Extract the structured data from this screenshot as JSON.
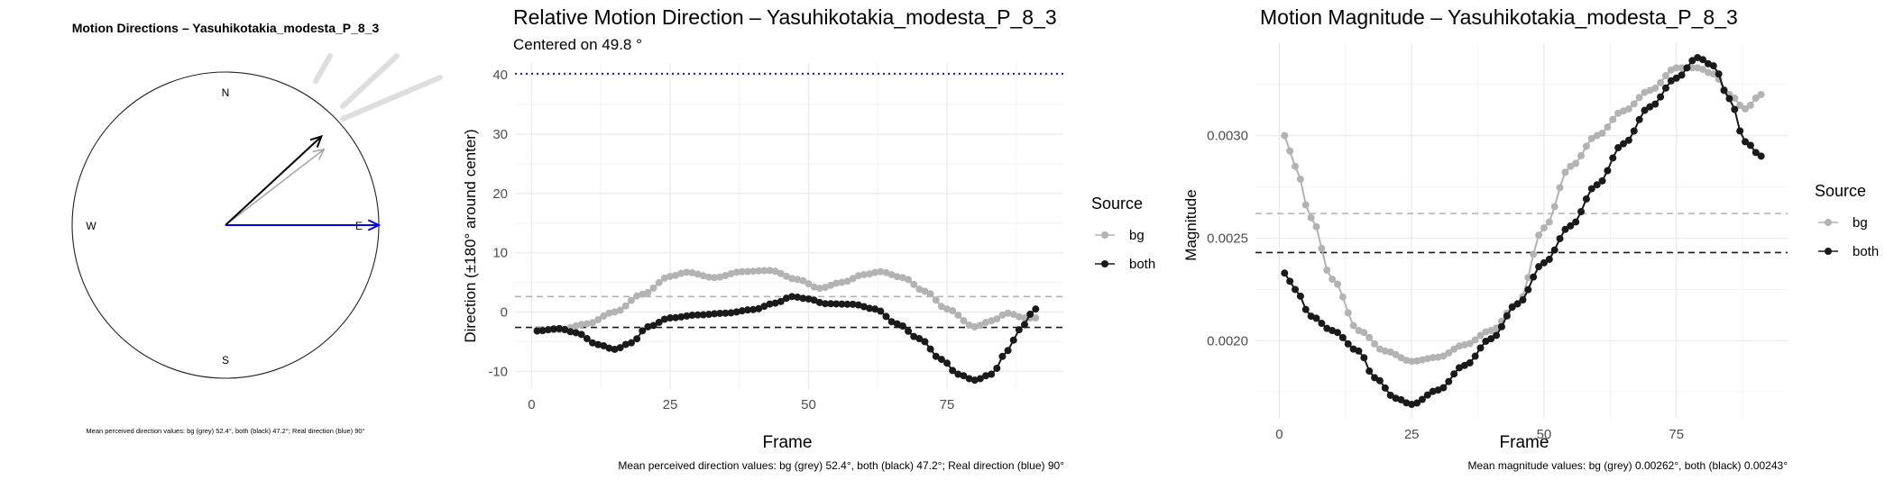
{
  "compass": {
    "title": "Motion Directions – Yasuhikotakia_modesta_P_8_3",
    "labels": {
      "n": "N",
      "e": "E",
      "s": "S",
      "w": "W"
    },
    "caption": "Mean perceived direction values: bg (grey) 52.4°, both (black) 47.2°; Real direction (blue) 90°",
    "arrows": [
      {
        "name": "bg",
        "angle_deg": 52.4,
        "color": "#a8a8a8"
      },
      {
        "name": "both",
        "angle_deg": 47.2,
        "color": "#000000"
      },
      {
        "name": "real",
        "angle_deg": 90,
        "color": "#0000ee"
      }
    ]
  },
  "legend": {
    "title": "Source",
    "items": [
      {
        "label": "bg",
        "color": "#b3b3b3"
      },
      {
        "label": "both",
        "color": "#1a1a1a"
      }
    ]
  },
  "colors": {
    "bg": "#b3b3b3",
    "both": "#1a1a1a",
    "real": "#1a1aa8",
    "grid": "#ebebeb"
  },
  "chart_data": [
    {
      "type": "line",
      "title": "Relative Motion Direction – Yasuhikotakia_modesta_P_8_3",
      "subtitle": "Centered on  49.8 °",
      "xlabel": "Frame",
      "ylabel": "Direction (±180° around center)",
      "xlim": [
        -3,
        96
      ],
      "ylim": [
        -13,
        42
      ],
      "xticks": [
        0,
        25,
        50,
        75
      ],
      "yticks": [
        -10,
        0,
        10,
        20,
        30,
        40
      ],
      "caption": "Mean perceived direction values: bg (grey) 52.4°, both (black) 47.2°; Real direction (blue) 90°",
      "hlines": [
        {
          "series": "real",
          "value": 40.2,
          "style": "dotted"
        },
        {
          "series": "bg",
          "value": 2.6,
          "style": "dashed"
        },
        {
          "series": "both",
          "value": -2.6,
          "style": "dashed"
        }
      ],
      "series": [
        {
          "name": "bg",
          "points": [
            [
              1,
              -3
            ],
            [
              5,
              -3
            ],
            [
              10,
              -2
            ],
            [
              15,
              0
            ],
            [
              20,
              3
            ],
            [
              25,
              6
            ],
            [
              28,
              6.7
            ],
            [
              33,
              5.8
            ],
            [
              38,
              6.8
            ],
            [
              43,
              7
            ],
            [
              48,
              5.5
            ],
            [
              52,
              4
            ],
            [
              56,
              5
            ],
            [
              60,
              6.3
            ],
            [
              63,
              6.8
            ],
            [
              67,
              5.8
            ],
            [
              71,
              3.5
            ],
            [
              75,
              0.5
            ],
            [
              80,
              -2.5
            ],
            [
              83,
              -1.5
            ],
            [
              86,
              -0.2
            ],
            [
              89,
              -1
            ],
            [
              91,
              -1
            ]
          ]
        },
        {
          "name": "both",
          "points": [
            [
              1,
              -3.2
            ],
            [
              5,
              -2.8
            ],
            [
              8,
              -3.5
            ],
            [
              12,
              -5.5
            ],
            [
              15,
              -6.3
            ],
            [
              18,
              -5.2
            ],
            [
              21,
              -2.5
            ],
            [
              25,
              -1
            ],
            [
              30,
              -0.5
            ],
            [
              35,
              -0.2
            ],
            [
              40,
              0.4
            ],
            [
              44,
              1.5
            ],
            [
              47,
              2.6
            ],
            [
              50,
              2.2
            ],
            [
              53,
              1.4
            ],
            [
              58,
              1.3
            ],
            [
              62,
              0.5
            ],
            [
              66,
              -2
            ],
            [
              70,
              -4.5
            ],
            [
              74,
              -8
            ],
            [
              77,
              -10.5
            ],
            [
              80,
              -11.5
            ],
            [
              83,
              -10.5
            ],
            [
              86,
              -6.5
            ],
            [
              88,
              -3
            ],
            [
              91,
              0.5
            ]
          ]
        }
      ]
    },
    {
      "type": "line",
      "title": "Motion Magnitude – Yasuhikotakia_modesta_P_8_3",
      "xlabel": "Frame",
      "ylabel": "Magnitude",
      "xlim": [
        -4.5,
        96
      ],
      "ylim": [
        0.00162,
        0.00345
      ],
      "xticks": [
        0,
        25,
        50,
        75
      ],
      "yticks": [
        0.002,
        0.0025,
        0.003
      ],
      "ytick_labels": [
        "0.0020",
        "0.0025",
        "0.0030"
      ],
      "caption": "Mean magnitude values: bg (grey) 0.00262°, both (black) 0.00243°",
      "hlines": [
        {
          "series": "bg",
          "value": 0.00262,
          "style": "dashed"
        },
        {
          "series": "both",
          "value": 0.00243,
          "style": "dashed"
        }
      ],
      "series": [
        {
          "name": "bg",
          "points": [
            [
              1,
              0.003
            ],
            [
              3,
              0.00285
            ],
            [
              6,
              0.0026
            ],
            [
              10,
              0.0023
            ],
            [
              15,
              0.00205
            ],
            [
              20,
              0.00195
            ],
            [
              25,
              0.0019
            ],
            [
              30,
              0.00192
            ],
            [
              35,
              0.00198
            ],
            [
              40,
              0.00205
            ],
            [
              45,
              0.00218
            ],
            [
              50,
              0.00255
            ],
            [
              55,
              0.00285
            ],
            [
              60,
              0.003
            ],
            [
              65,
              0.00312
            ],
            [
              70,
              0.00322
            ],
            [
              75,
              0.00333
            ],
            [
              79,
              0.00333
            ],
            [
              82,
              0.0033
            ],
            [
              85,
              0.0032
            ],
            [
              88,
              0.00313
            ],
            [
              91,
              0.0032
            ]
          ]
        },
        {
          "name": "both",
          "points": [
            [
              1,
              0.00233
            ],
            [
              3,
              0.00225
            ],
            [
              6,
              0.00212
            ],
            [
              10,
              0.00205
            ],
            [
              15,
              0.00195
            ],
            [
              18,
              0.00182
            ],
            [
              22,
              0.00172
            ],
            [
              25,
              0.00169
            ],
            [
              30,
              0.00176
            ],
            [
              35,
              0.00188
            ],
            [
              40,
              0.00201
            ],
            [
              45,
              0.00218
            ],
            [
              50,
              0.00238
            ],
            [
              55,
              0.00256
            ],
            [
              60,
              0.00276
            ],
            [
              65,
              0.00296
            ],
            [
              70,
              0.00314
            ],
            [
              75,
              0.00328
            ],
            [
              79,
              0.00338
            ],
            [
              82,
              0.00334
            ],
            [
              85,
              0.00318
            ],
            [
              88,
              0.00297
            ],
            [
              91,
              0.0029
            ]
          ]
        }
      ]
    }
  ]
}
